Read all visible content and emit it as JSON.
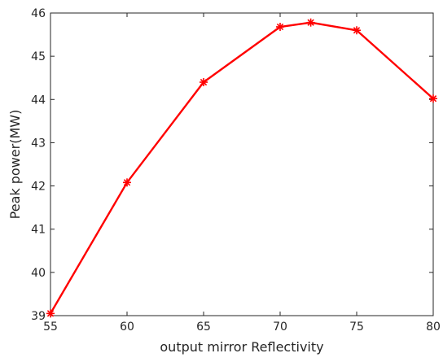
{
  "chart_data": {
    "type": "line",
    "title": "",
    "xlabel": "output mirror Reflectivity",
    "ylabel": "Peak power(MW)",
    "xlim": [
      55,
      80
    ],
    "ylim": [
      39,
      46
    ],
    "xticks": [
      55,
      60,
      65,
      70,
      75,
      80
    ],
    "yticks": [
      39,
      40,
      41,
      42,
      43,
      44,
      45,
      46
    ],
    "grid": false,
    "legend": "none",
    "series": [
      {
        "color": "#ff0000",
        "marker": "asterisk",
        "x": [
          55,
          60,
          65,
          70,
          72,
          75,
          80
        ],
        "y": [
          39.05,
          42.08,
          44.4,
          45.68,
          45.78,
          45.6,
          44.02
        ]
      }
    ]
  }
}
